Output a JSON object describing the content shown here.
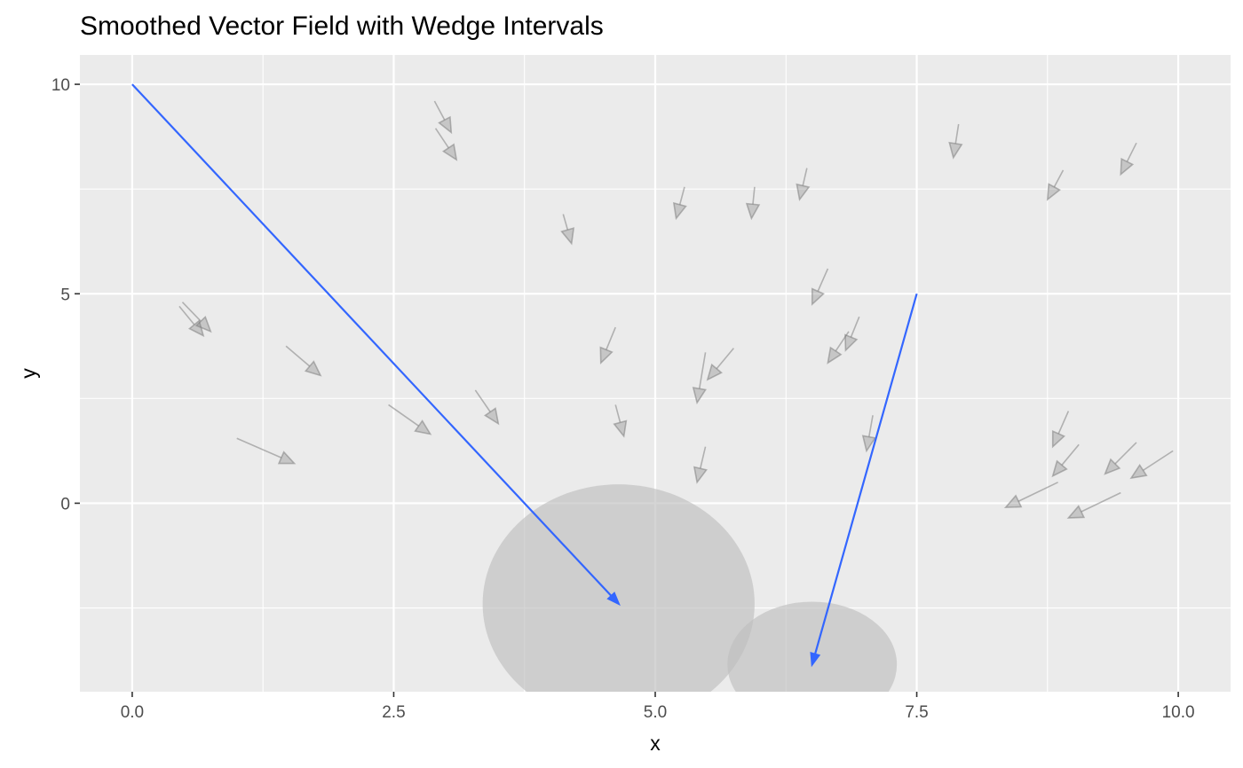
{
  "chart_data": {
    "type": "vector-field",
    "title": "Smoothed Vector Field with Wedge Intervals",
    "xlabel": "x",
    "ylabel": "y",
    "xlim": [
      -0.5,
      10.5
    ],
    "ylim": [
      -4.5,
      10.7
    ],
    "x_ticks": [
      0.0,
      2.5,
      5.0,
      7.5,
      10.0
    ],
    "x_tick_labels": [
      "0.0",
      "2.5",
      "5.0",
      "7.5",
      "10.0"
    ],
    "y_ticks": [
      0,
      5,
      10
    ],
    "y_tick_labels": [
      "0",
      "5",
      "10"
    ],
    "grid": true,
    "legend": "none",
    "colors": {
      "panel": "#ebebeb",
      "grid": "#ffffff",
      "field_arrow": "#808080",
      "smoothed_arrow": "#3366ff",
      "wedge": "#bfbfbf"
    },
    "field_vectors": [
      {
        "x0": 2.89,
        "y0": 9.6,
        "x1": 3.05,
        "y1": 8.85
      },
      {
        "x0": 2.9,
        "y0": 8.95,
        "x1": 3.1,
        "y1": 8.2
      },
      {
        "x0": 4.12,
        "y0": 6.9,
        "x1": 4.2,
        "y1": 6.2
      },
      {
        "x0": 5.28,
        "y0": 7.55,
        "x1": 5.2,
        "y1": 6.8
      },
      {
        "x0": 5.95,
        "y0": 7.55,
        "x1": 5.92,
        "y1": 6.8
      },
      {
        "x0": 6.45,
        "y0": 8.0,
        "x1": 6.38,
        "y1": 7.25
      },
      {
        "x0": 7.9,
        "y0": 9.05,
        "x1": 7.85,
        "y1": 8.25
      },
      {
        "x0": 8.9,
        "y0": 7.95,
        "x1": 8.75,
        "y1": 7.25
      },
      {
        "x0": 9.6,
        "y0": 8.6,
        "x1": 9.45,
        "y1": 7.85
      },
      {
        "x0": 0.45,
        "y0": 4.7,
        "x1": 0.68,
        "y1": 4.0
      },
      {
        "x0": 0.48,
        "y0": 4.8,
        "x1": 0.75,
        "y1": 4.1
      },
      {
        "x0": 1.47,
        "y0": 3.75,
        "x1": 1.8,
        "y1": 3.05
      },
      {
        "x0": 1.0,
        "y0": 1.55,
        "x1": 1.55,
        "y1": 0.95
      },
      {
        "x0": 2.45,
        "y0": 2.35,
        "x1": 2.85,
        "y1": 1.65
      },
      {
        "x0": 3.28,
        "y0": 2.7,
        "x1": 3.5,
        "y1": 1.9
      },
      {
        "x0": 4.62,
        "y0": 4.2,
        "x1": 4.48,
        "y1": 3.35
      },
      {
        "x0": 4.62,
        "y0": 2.35,
        "x1": 4.7,
        "y1": 1.6
      },
      {
        "x0": 5.48,
        "y0": 1.35,
        "x1": 5.4,
        "y1": 0.5
      },
      {
        "x0": 5.48,
        "y0": 3.6,
        "x1": 5.4,
        "y1": 2.4
      },
      {
        "x0": 5.75,
        "y0": 3.7,
        "x1": 5.5,
        "y1": 2.95
      },
      {
        "x0": 6.65,
        "y0": 5.6,
        "x1": 6.5,
        "y1": 4.75
      },
      {
        "x0": 6.85,
        "y0": 4.1,
        "x1": 6.65,
        "y1": 3.35
      },
      {
        "x0": 6.95,
        "y0": 4.45,
        "x1": 6.82,
        "y1": 3.65
      },
      {
        "x0": 7.08,
        "y0": 2.1,
        "x1": 7.02,
        "y1": 1.25
      },
      {
        "x0": 8.95,
        "y0": 2.2,
        "x1": 8.8,
        "y1": 1.35
      },
      {
        "x0": 9.05,
        "y0": 1.4,
        "x1": 8.8,
        "y1": 0.65
      },
      {
        "x0": 9.6,
        "y0": 1.45,
        "x1": 9.3,
        "y1": 0.7
      },
      {
        "x0": 9.95,
        "y0": 1.25,
        "x1": 9.55,
        "y1": 0.6
      },
      {
        "x0": 8.85,
        "y0": 0.5,
        "x1": 8.35,
        "y1": -0.1
      },
      {
        "x0": 9.45,
        "y0": 0.25,
        "x1": 8.95,
        "y1": -0.35
      }
    ],
    "smoothed_vectors": [
      {
        "x0": 0.0,
        "y0": 10.0,
        "x1": 4.65,
        "y1": -2.4
      },
      {
        "x0": 7.5,
        "y0": 5.0,
        "x1": 6.5,
        "y1": -3.85
      }
    ],
    "wedges": [
      {
        "cx": 4.65,
        "cy": -2.4,
        "rx": 1.3,
        "ry": 2.85
      },
      {
        "cx": 6.5,
        "cy": -3.85,
        "rx": 0.81,
        "ry": 1.5
      }
    ]
  }
}
